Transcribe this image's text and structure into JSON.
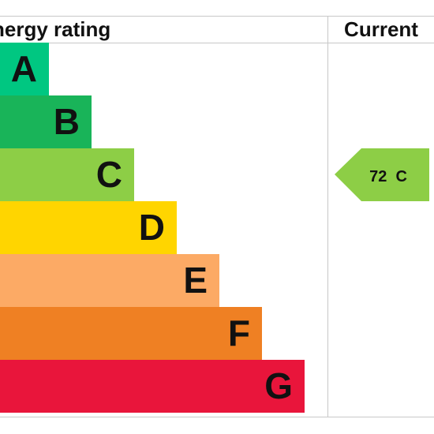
{
  "chart_data": {
    "type": "bar",
    "header": {
      "left": "nergy rating",
      "right": "Current"
    },
    "bands": [
      {
        "letter": "A",
        "color": "#00c781"
      },
      {
        "letter": "B",
        "color": "#19b459"
      },
      {
        "letter": "C",
        "color": "#8dce46"
      },
      {
        "letter": "D",
        "color": "#ffd500"
      },
      {
        "letter": "E",
        "color": "#fcaa65"
      },
      {
        "letter": "F",
        "color": "#ef8023"
      },
      {
        "letter": "G",
        "color": "#e9153b"
      }
    ],
    "current": {
      "value": 72,
      "band": "C",
      "label": "72  C",
      "color": "#8dce46"
    }
  }
}
